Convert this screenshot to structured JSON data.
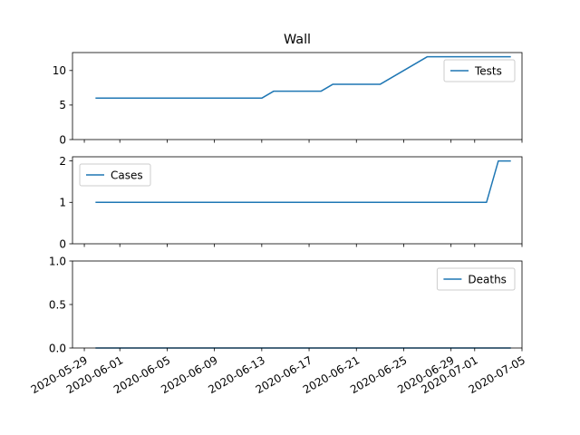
{
  "chart_data": [
    {
      "type": "line",
      "title": "Wall",
      "xlabel": "",
      "ylabel": "",
      "ylim": [
        0,
        12.6
      ],
      "yticks": [
        0,
        5,
        10
      ],
      "ytick_labels": [
        "0",
        "5",
        "10"
      ],
      "legend": "upper right",
      "grid": false,
      "series": [
        {
          "name": "Tests",
          "color": "#1f77b4",
          "points": [
            [
              "2020-05-30",
              6
            ],
            [
              "2020-06-13",
              6
            ],
            [
              "2020-06-14",
              7
            ],
            [
              "2020-06-18",
              7
            ],
            [
              "2020-06-19",
              8
            ],
            [
              "2020-06-23",
              8
            ],
            [
              "2020-06-27",
              12
            ],
            [
              "2020-07-04",
              12
            ]
          ]
        }
      ]
    },
    {
      "type": "line",
      "title": "",
      "xlabel": "",
      "ylabel": "",
      "ylim": [
        0,
        2.1
      ],
      "yticks": [
        0,
        1,
        2
      ],
      "ytick_labels": [
        "0",
        "1",
        "2"
      ],
      "legend": "upper left",
      "grid": false,
      "series": [
        {
          "name": "Cases",
          "color": "#1f77b4",
          "points": [
            [
              "2020-05-30",
              1
            ],
            [
              "2020-07-02",
              1
            ],
            [
              "2020-07-03",
              2
            ],
            [
              "2020-07-04",
              2
            ]
          ]
        }
      ]
    },
    {
      "type": "line",
      "title": "",
      "xlabel": "",
      "ylabel": "",
      "ylim": [
        0,
        1.0
      ],
      "yticks": [
        0,
        0.5,
        1.0
      ],
      "ytick_labels": [
        "0.0",
        "0.5",
        "1.0"
      ],
      "legend": "upper right",
      "grid": false,
      "series": [
        {
          "name": "Deaths",
          "color": "#1f77b4",
          "points": [
            [
              "2020-05-30",
              0
            ],
            [
              "2020-07-04",
              0
            ]
          ]
        }
      ]
    }
  ],
  "x_axis": {
    "xlim": [
      "2020-05-28",
      "2020-07-05"
    ],
    "ticks": [
      "2020-05-29",
      "2020-06-01",
      "2020-06-05",
      "2020-06-09",
      "2020-06-13",
      "2020-06-17",
      "2020-06-21",
      "2020-06-25",
      "2020-06-29",
      "2020-07-01",
      "2020-07-05"
    ],
    "tick_labels": [
      "2020-05-29",
      "2020-06-01",
      "2020-06-05",
      "2020-06-09",
      "2020-06-13",
      "2020-06-17",
      "2020-06-21",
      "2020-06-25",
      "2020-06-29",
      "2020-07-01",
      "2020-07-05"
    ]
  }
}
